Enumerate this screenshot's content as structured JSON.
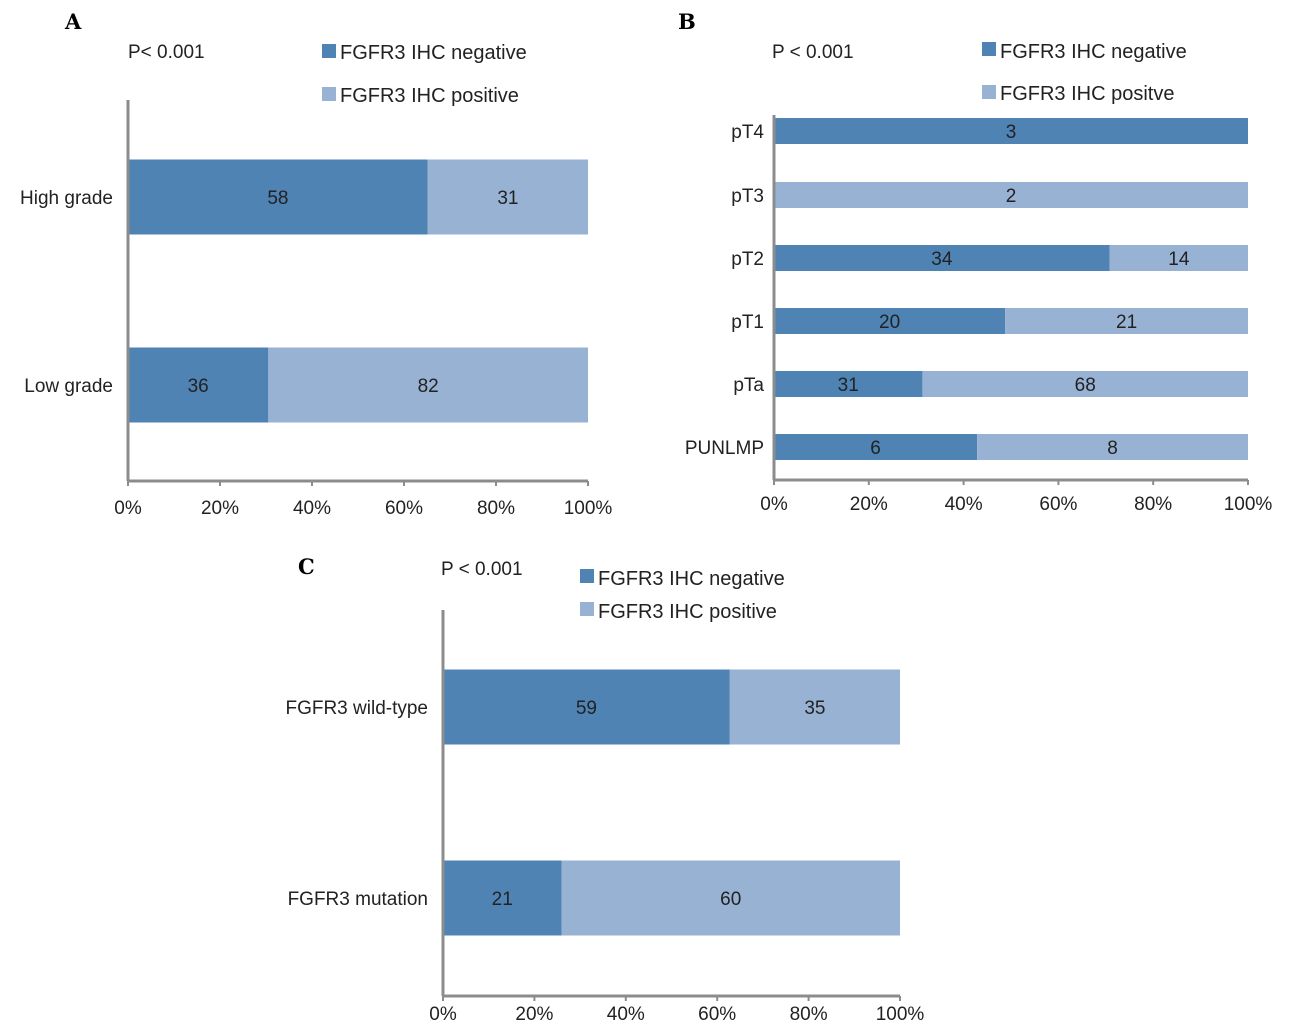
{
  "colors": {
    "negative": "#4f83b4",
    "positive": "#98b2d3"
  },
  "chart_data": [
    {
      "type": "bar",
      "orientation": "horizontal",
      "stacked": "percent",
      "panel": "A",
      "pvalue": "P< 0.001",
      "categories": [
        "High grade",
        "Low grade"
      ],
      "series": [
        {
          "name": "FGFR3 IHC negative",
          "values": [
            58,
            36
          ]
        },
        {
          "name": "FGFR3 IHC positive",
          "values": [
            31,
            82
          ]
        }
      ],
      "xticks": [
        "0%",
        "20%",
        "40%",
        "60%",
        "80%",
        "100%"
      ],
      "xlim": [
        0,
        100
      ]
    },
    {
      "type": "bar",
      "orientation": "horizontal",
      "stacked": "percent",
      "panel": "B",
      "pvalue": "P < 0.001",
      "categories": [
        "pT4",
        "pT3",
        "pT2",
        "pT1",
        "pTa",
        "PUNLMP"
      ],
      "series": [
        {
          "name": "FGFR3 IHC negative",
          "values": [
            3,
            0,
            34,
            20,
            31,
            6
          ]
        },
        {
          "name": "FGFR3 IHC positve",
          "values": [
            0,
            2,
            14,
            21,
            68,
            8
          ]
        }
      ],
      "xticks": [
        "0%",
        "20%",
        "40%",
        "60%",
        "80%",
        "100%"
      ],
      "xlim": [
        0,
        100
      ]
    },
    {
      "type": "bar",
      "orientation": "horizontal",
      "stacked": "percent",
      "panel": "C",
      "pvalue": "P < 0.001",
      "categories": [
        "FGFR3 wild-type",
        "FGFR3 mutation"
      ],
      "series": [
        {
          "name": "FGFR3 IHC negative",
          "values": [
            59,
            21
          ]
        },
        {
          "name": "FGFR3 IHC positive",
          "values": [
            35,
            60
          ]
        }
      ],
      "xticks": [
        "0%",
        "20%",
        "40%",
        "60%",
        "80%",
        "100%"
      ],
      "xlim": [
        0,
        100
      ]
    }
  ]
}
